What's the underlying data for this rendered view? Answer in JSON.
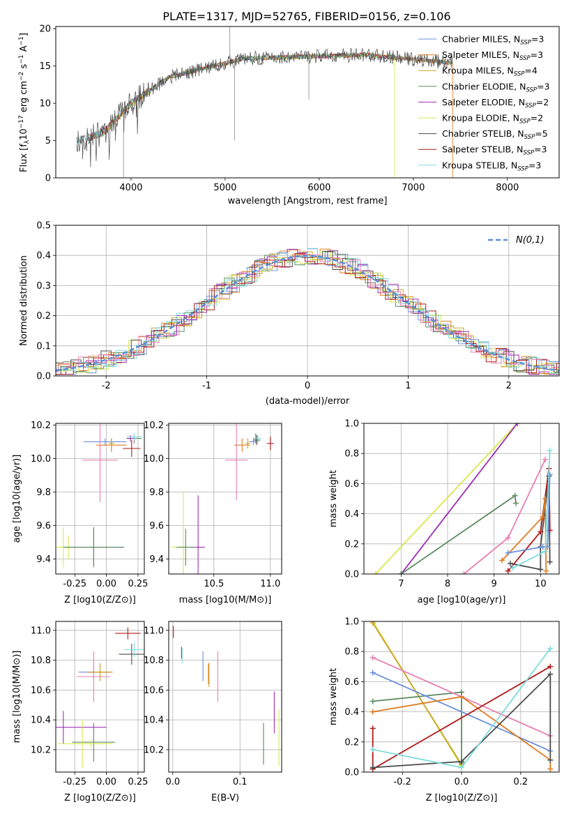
{
  "figure_title": "PLATE=1317, MJD=52765, FIBERID=0156, z=0.106",
  "colors": {
    "chabrier_miles": "#6a8fdc",
    "salpeter_miles": "#e07b1f",
    "kroupa_miles": "#c9a227",
    "chabrier_elodie": "#5a8a5e",
    "salpeter_elodie": "#9d2db5",
    "kroupa_elodie": "#d7e84a",
    "chabrier_stelib": "#4a4a4a",
    "salpeter_stelib": "#b01818",
    "kroupa_stelib": "#7fdcdc",
    "pink": "#e87fb0",
    "normal_dashed": "#5a8fd8"
  },
  "chart_data": [
    {
      "id": "spectrum",
      "type": "line",
      "xlabel": "wavelength [Angstrom, rest frame]",
      "ylabel": "Flux [f_λ 10^-17 erg cm^-2 s^-1 A^-1]",
      "ylabel_parts": {
        "main": "Flux [f",
        "sub": "λ",
        "mid": "10",
        "sup1": "−17",
        "rest1": " erg cm",
        "sup2": "−2",
        "rest2": " s",
        "sup3": "−1",
        "rest3": " A",
        "sup4": "−1",
        "end": "]"
      },
      "xlim": [
        3200,
        8550
      ],
      "ylim": [
        0,
        20.3
      ],
      "xticks": [
        4000,
        5000,
        6000,
        7000,
        8000
      ],
      "yticks": [
        0,
        5,
        10,
        15,
        20
      ],
      "legend": "top-right",
      "series": [
        {
          "name": "Chabrier MILES",
          "n": "3",
          "color_key": "chabrier_miles"
        },
        {
          "name": "Salpeter MILES",
          "n": "3",
          "color_key": "salpeter_miles"
        },
        {
          "name": "Kroupa MILES",
          "n": "4",
          "color_key": "kroupa_miles"
        },
        {
          "name": "Chabrier ELODIE",
          "n": "3",
          "color_key": "chabrier_elodie"
        },
        {
          "name": "Salpeter ELODIE",
          "n": "2",
          "color_key": "salpeter_elodie"
        },
        {
          "name": "Kroupa ELODIE",
          "n": "2",
          "color_key": "kroupa_elodie"
        },
        {
          "name": "Chabrier STELIB",
          "n": "5",
          "color_key": "chabrier_stelib"
        },
        {
          "name": "Salpeter STELIB",
          "n": "3",
          "color_key": "salpeter_stelib"
        },
        {
          "name": "Kroupa STELIB",
          "n": "3",
          "color_key": "kroupa_stelib"
        }
      ]
    },
    {
      "id": "residuals",
      "type": "line",
      "xlabel": "(data-model)/error",
      "ylabel": "Normed distribution",
      "xlim": [
        -2.5,
        2.5
      ],
      "ylim": [
        0,
        0.5
      ],
      "xticks": [
        -2,
        -1,
        0,
        1,
        2
      ],
      "yticks": [
        0.0,
        0.1,
        0.2,
        0.3,
        0.4,
        0.5
      ],
      "grid": true,
      "legend": "top-right",
      "legend_label": "N(0,1)"
    },
    {
      "id": "age_vs_Z",
      "type": "scatter",
      "xlabel": "Z [log10(Z/Z⊙)]",
      "ylabel": "age  [log10(age/yr)]",
      "xlim": [
        -0.4,
        0.3
      ],
      "ylim": [
        9.31,
        10.21
      ],
      "xticks": [
        -0.25,
        0.0,
        0.25
      ],
      "yticks": [
        9.4,
        9.6,
        9.8,
        10.0,
        10.2
      ],
      "grid": true,
      "points": [
        {
          "x": -0.01,
          "y": 10.1,
          "xerr": 0.17,
          "yerr": 0.02,
          "c": "chabrier_miles"
        },
        {
          "x": 0.04,
          "y": 10.08,
          "xerr": 0.12,
          "yerr": 0.04,
          "c": "salpeter_miles"
        },
        {
          "x": 0.04,
          "y": 10.09,
          "xerr": 0.02,
          "yerr": 0.03,
          "c": "kroupa_miles"
        },
        {
          "x": 0.22,
          "y": 10.12,
          "xerr": 0.06,
          "yerr": 0.03,
          "c": "chabrier_elodie"
        },
        {
          "x": 0.19,
          "y": 10.12,
          "xerr": 0.03,
          "yerr": 0.02,
          "c": "salpeter_elodie"
        },
        {
          "x": -0.34,
          "y": 9.47,
          "xerr": 0.06,
          "yerr": 0.12,
          "c": "kroupa_elodie"
        },
        {
          "x": -0.1,
          "y": 9.47,
          "xerr": 0.24,
          "yerr": 0.11,
          "c": "chabrier_stelib"
        },
        {
          "x": 0.2,
          "y": 10.06,
          "xerr": 0.07,
          "yerr": 0.05,
          "c": "salpeter_stelib"
        },
        {
          "x": 0.22,
          "y": 10.13,
          "xerr": 0.06,
          "yerr": 0.02,
          "c": "kroupa_stelib"
        },
        {
          "x": -0.05,
          "y": 9.99,
          "xerr": 0.14,
          "yerr": 0.25,
          "c": "pink"
        },
        {
          "x": -0.3,
          "y": 9.47,
          "xerr": 0.06,
          "yerr": 0.07,
          "c": "kroupa_elodie"
        },
        {
          "x": -0.1,
          "y": 9.47,
          "xerr": 0.24,
          "yerr": 0.12,
          "c": "chabrier_elodie"
        }
      ]
    },
    {
      "id": "age_vs_mass",
      "type": "scatter",
      "xlabel": "mass [log10(M/M⊙)]",
      "xlim": [
        10.1,
        11.1
      ],
      "ylim": [
        9.31,
        10.21
      ],
      "xticks": [
        10.5,
        11.0
      ],
      "yticks": [
        9.4,
        9.6,
        9.8,
        10.0,
        10.2
      ],
      "grid": true,
      "points": [
        {
          "x": 10.85,
          "y": 10.1,
          "xerr": 0.04,
          "yerr": 0.02,
          "c": "chabrier_miles"
        },
        {
          "x": 10.75,
          "y": 10.08,
          "xerr": 0.07,
          "yerr": 0.04,
          "c": "salpeter_miles"
        },
        {
          "x": 10.8,
          "y": 10.09,
          "xerr": 0.02,
          "yerr": 0.03,
          "c": "kroupa_miles"
        },
        {
          "x": 10.87,
          "y": 10.12,
          "xerr": 0.02,
          "yerr": 0.03,
          "c": "chabrier_elodie"
        },
        {
          "x": 10.36,
          "y": 9.47,
          "xerr": 0.06,
          "yerr": 0.31,
          "c": "salpeter_elodie"
        },
        {
          "x": 10.23,
          "y": 9.47,
          "xerr": 0.1,
          "yerr": 0.33,
          "c": "kroupa_elodie"
        },
        {
          "x": 10.88,
          "y": 10.11,
          "xerr": 0.03,
          "yerr": 0.03,
          "c": "chabrier_stelib"
        },
        {
          "x": 11.0,
          "y": 10.09,
          "xerr": 0.03,
          "yerr": 0.04,
          "c": "salpeter_stelib"
        },
        {
          "x": 10.89,
          "y": 10.12,
          "xerr": 0.03,
          "yerr": 0.02,
          "c": "kroupa_stelib"
        },
        {
          "x": 10.7,
          "y": 9.99,
          "xerr": 0.1,
          "yerr": 0.24,
          "c": "pink"
        },
        {
          "x": 10.25,
          "y": 9.47,
          "xerr": 0.08,
          "yerr": 0.11,
          "c": "chabrier_elodie"
        }
      ]
    },
    {
      "id": "weights_vs_age",
      "type": "line",
      "xlabel": "age  [log10(age/yr)]",
      "ylabel": "mass weight",
      "xlim": [
        6.2,
        10.4
      ],
      "ylim": [
        0,
        1.0
      ],
      "xticks": [
        7,
        8,
        9,
        10
      ],
      "yticks": [
        0.0,
        0.2,
        0.4,
        0.6,
        0.8,
        1.0
      ],
      "grid": true,
      "series": [
        {
          "c": "kroupa_elodie",
          "pts": [
            [
              6.45,
              0.0
            ],
            [
              9.5,
              1.0
            ]
          ]
        },
        {
          "c": "salpeter_elodie",
          "pts": [
            [
              7.0,
              0.0
            ],
            [
              9.5,
              1.0
            ]
          ]
        },
        {
          "c": "chabrier_elodie",
          "pts": [
            [
              7.0,
              0.0
            ],
            [
              9.45,
              0.52
            ],
            [
              9.47,
              0.47
            ]
          ]
        },
        {
          "c": "pink",
          "pts": [
            [
              8.35,
              0.0
            ],
            [
              9.3,
              0.24
            ],
            [
              10.1,
              0.76
            ]
          ]
        },
        {
          "c": "chabrier_stelib",
          "pts": [
            [
              9.35,
              0.07
            ],
            [
              10.0,
              0.03
            ],
            [
              10.0,
              0.18
            ],
            [
              10.18,
              0.65
            ],
            [
              10.2,
              0.08
            ]
          ]
        },
        {
          "c": "salpeter_stelib",
          "pts": [
            [
              9.3,
              0.02
            ],
            [
              10.0,
              0.28
            ],
            [
              10.18,
              0.7
            ],
            [
              10.2,
              0.29
            ]
          ]
        },
        {
          "c": "salpeter_miles",
          "pts": [
            [
              9.17,
              0.09
            ],
            [
              10.05,
              0.38
            ],
            [
              10.1,
              0.5
            ],
            [
              10.12,
              0.02
            ]
          ]
        },
        {
          "c": "chabrier_miles",
          "pts": [
            [
              9.3,
              0.14
            ],
            [
              10.05,
              0.18
            ],
            [
              10.15,
              0.18
            ],
            [
              10.2,
              0.66
            ]
          ]
        },
        {
          "c": "kroupa_stelib",
          "pts": [
            [
              9.4,
              0.04
            ],
            [
              10.1,
              0.15
            ],
            [
              10.2,
              0.82
            ]
          ]
        }
      ]
    },
    {
      "id": "mass_vs_Z",
      "type": "scatter",
      "xlabel": "Z [log10(Z/Z⊙)]",
      "ylabel": "mass [log10(M/M⊙)]",
      "xlim": [
        -0.4,
        0.3
      ],
      "ylim": [
        10.05,
        11.06
      ],
      "xticks": [
        -0.25,
        0.0,
        0.25
      ],
      "yticks": [
        10.2,
        10.4,
        10.6,
        10.8,
        11.0
      ],
      "grid": true,
      "points": [
        {
          "x": -0.1,
          "y": 10.72,
          "xerr": 0.12,
          "yerr": 0.04,
          "c": "chabrier_miles"
        },
        {
          "x": -0.05,
          "y": 10.72,
          "xerr": 0.1,
          "yerr": 0.06,
          "c": "salpeter_miles"
        },
        {
          "x": -0.05,
          "y": 10.72,
          "xerr": 0.08,
          "yerr": 0.05,
          "c": "kroupa_miles"
        },
        {
          "x": -0.1,
          "y": 10.25,
          "xerr": 0.17,
          "yerr": 0.13,
          "c": "chabrier_elodie"
        },
        {
          "x": -0.34,
          "y": 10.35,
          "xerr": 0.34,
          "yerr": 0.11,
          "c": "salpeter_elodie"
        },
        {
          "x": -0.19,
          "y": 10.24,
          "xerr": 0.2,
          "yerr": 0.16,
          "c": "kroupa_elodie"
        },
        {
          "x": 0.2,
          "y": 10.84,
          "xerr": 0.1,
          "yerr": 0.07,
          "c": "chabrier_stelib"
        },
        {
          "x": 0.17,
          "y": 10.98,
          "xerr": 0.1,
          "yerr": 0.04,
          "c": "salpeter_stelib"
        },
        {
          "x": 0.22,
          "y": 10.87,
          "xerr": 0.08,
          "yerr": 0.05,
          "c": "kroupa_stelib"
        },
        {
          "x": -0.1,
          "y": 10.69,
          "xerr": 0.13,
          "yerr": 0.17,
          "c": "pink"
        },
        {
          "x": -0.12,
          "y": 10.24,
          "xerr": 0.17,
          "yerr": 0.03,
          "c": "kroupa_elodie"
        }
      ]
    },
    {
      "id": "mass_vs_ebv",
      "type": "scatter",
      "xlabel": "E(B-V)",
      "xlim": [
        -0.006,
        0.162
      ],
      "ylim": [
        10.05,
        11.06
      ],
      "xticks": [
        0.0,
        0.1
      ],
      "yticks": [
        10.2,
        10.4,
        10.6,
        10.8,
        11.0
      ],
      "grid": true,
      "points": [
        {
          "x": 0.001,
          "y": 10.99,
          "yerr": 0.04,
          "c": "salpeter_stelib"
        },
        {
          "x": 0.013,
          "y": 10.85,
          "yerr": 0.04,
          "c": "chabrier_stelib"
        },
        {
          "x": 0.014,
          "y": 10.83,
          "yerr": 0.05,
          "c": "kroupa_stelib"
        },
        {
          "x": 0.045,
          "y": 10.76,
          "yerr": 0.1,
          "c": "chabrier_miles"
        },
        {
          "x": 0.053,
          "y": 10.71,
          "yerr": 0.07,
          "c": "salpeter_miles"
        },
        {
          "x": 0.054,
          "y": 10.7,
          "yerr": 0.08,
          "c": "kroupa_miles"
        },
        {
          "x": 0.067,
          "y": 10.69,
          "yerr": 0.17,
          "c": "pink"
        },
        {
          "x": 0.135,
          "y": 10.24,
          "yerr": 0.14,
          "c": "chabrier_elodie"
        },
        {
          "x": 0.151,
          "y": 10.45,
          "yerr": 0.14,
          "c": "salpeter_elodie"
        },
        {
          "x": 0.158,
          "y": 10.28,
          "yerr": 0.19,
          "c": "kroupa_elodie"
        }
      ]
    },
    {
      "id": "weights_vs_Z",
      "type": "line",
      "xlabel": "Z [log10(Z/Z⊙)]",
      "ylabel": "mass weight",
      "xlim": [
        -0.33,
        0.33
      ],
      "ylim": [
        0,
        1.0
      ],
      "xticks": [
        -0.2,
        0.0,
        0.2
      ],
      "yticks": [
        0.0,
        0.2,
        0.4,
        0.6,
        0.8,
        1.0
      ],
      "grid": true,
      "series": [
        {
          "c": "kroupa_elodie",
          "pts": [
            [
              -0.3,
              1.0
            ],
            [
              0.0,
              0.04
            ]
          ]
        },
        {
          "c": "kroupa_miles",
          "pts": [
            [
              -0.3,
              0.99
            ],
            [
              0.0,
              0.05
            ]
          ]
        },
        {
          "c": "chabrier_elodie",
          "pts": [
            [
              -0.3,
              0.47
            ],
            [
              0.0,
              0.53
            ],
            [
              0.0,
              0.06
            ]
          ]
        },
        {
          "c": "chabrier_miles",
          "pts": [
            [
              -0.3,
              0.66
            ],
            [
              0.3,
              0.14
            ]
          ]
        },
        {
          "c": "pink",
          "pts": [
            [
              -0.3,
              0.76
            ],
            [
              0.3,
              0.24
            ]
          ]
        },
        {
          "c": "salpeter_miles",
          "pts": [
            [
              -0.3,
              0.4
            ],
            [
              0.0,
              0.5
            ],
            [
              0.3,
              0.08
            ],
            [
              0.3,
              0.02
            ]
          ]
        },
        {
          "c": "salpeter_stelib",
          "pts": [
            [
              -0.3,
              0.29
            ],
            [
              -0.3,
              0.02
            ],
            [
              0.3,
              0.7
            ]
          ]
        },
        {
          "c": "chabrier_stelib",
          "pts": [
            [
              -0.3,
              0.03
            ],
            [
              0.0,
              0.07
            ],
            [
              0.3,
              0.65
            ],
            [
              0.3,
              0.08
            ]
          ]
        },
        {
          "c": "kroupa_stelib",
          "pts": [
            [
              -0.3,
              0.15
            ],
            [
              0.0,
              0.03
            ],
            [
              0.3,
              0.82
            ]
          ]
        }
      ]
    }
  ]
}
